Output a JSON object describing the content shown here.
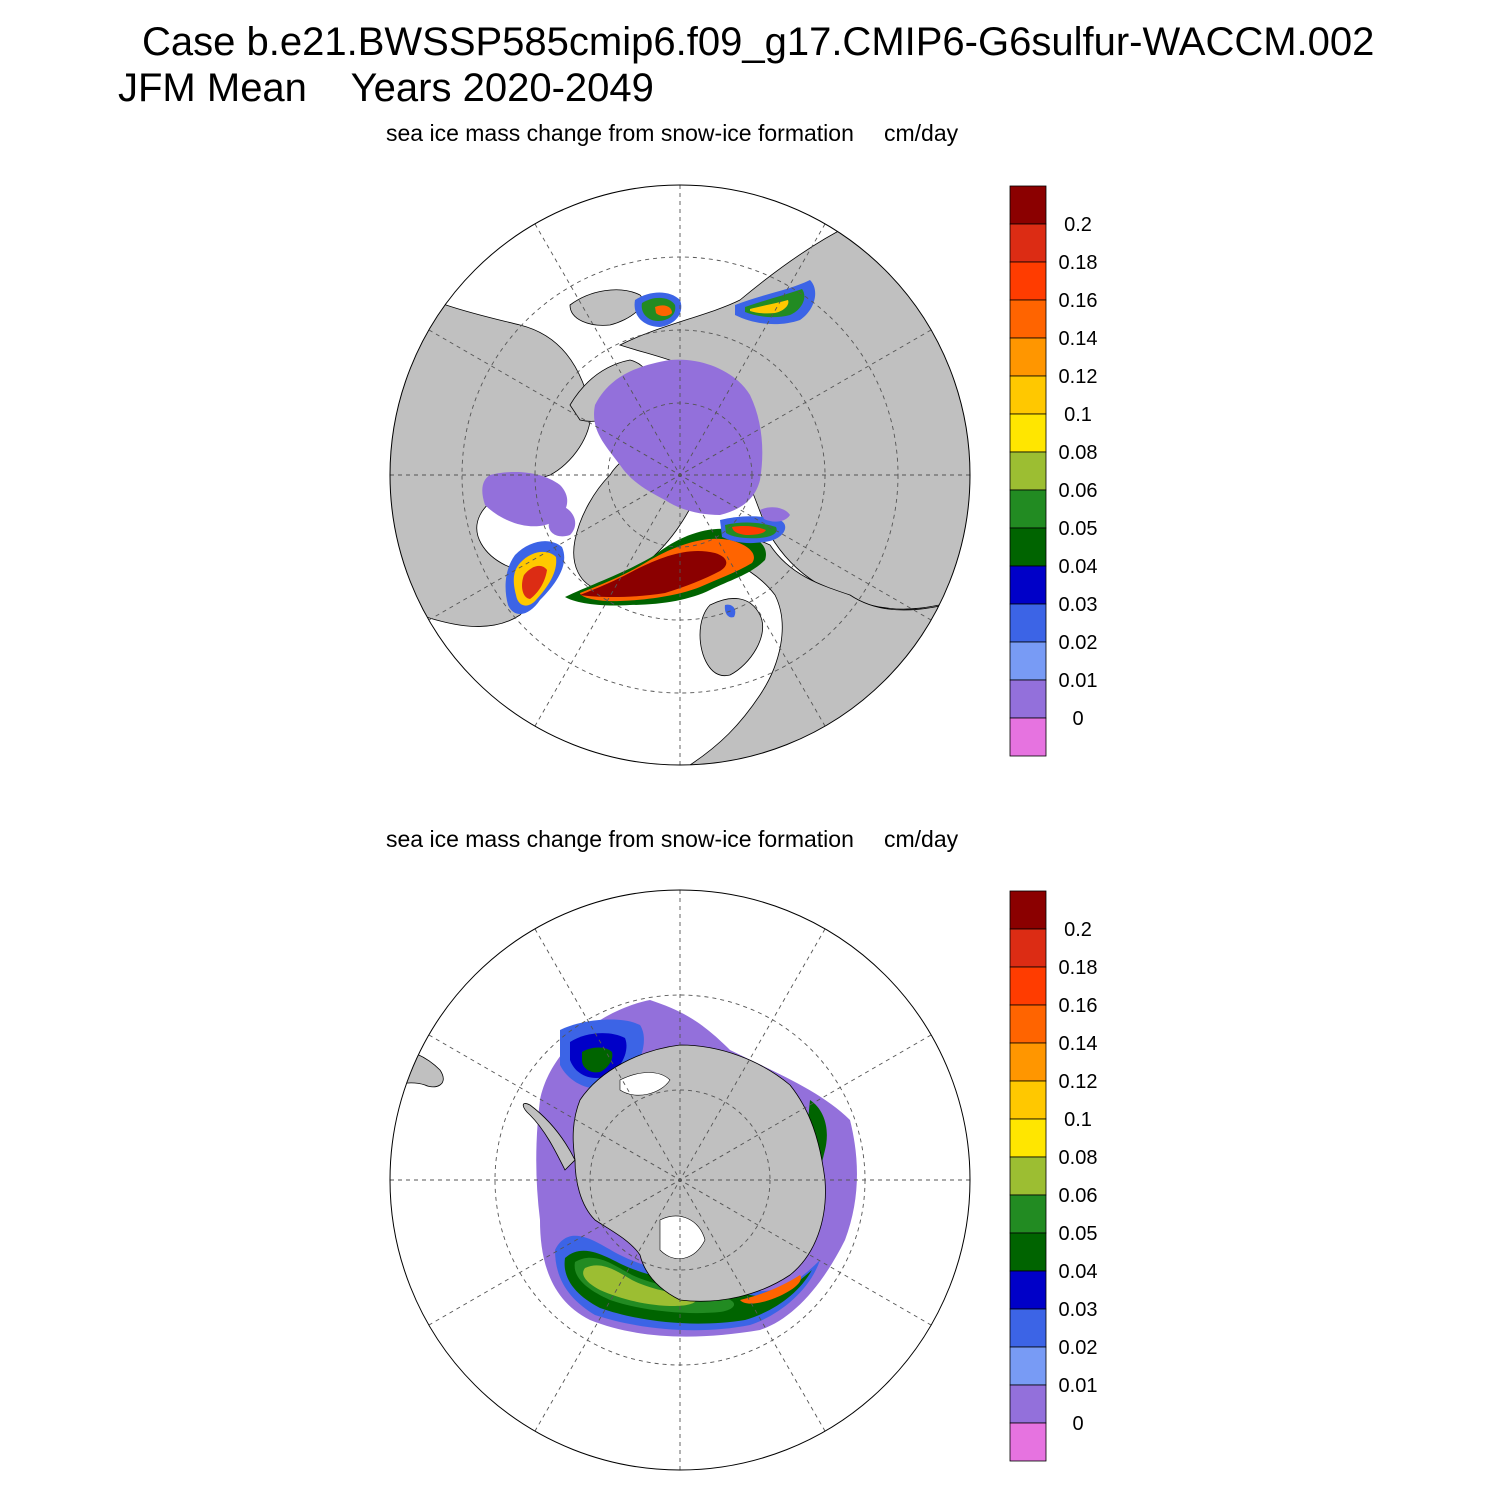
{
  "header": {
    "case_line": "Case b.e21.BWSSP585cmip6.f09_g17.CMIP6-G6sulfur-WACCM.002",
    "period_line": "JFM Mean    Years 2020-2049"
  },
  "panels": [
    {
      "id": "north",
      "title": "sea ice mass change from snow-ice formation",
      "units": "cm/day",
      "hemisphere": "northern",
      "projection": "polar stereographic"
    },
    {
      "id": "south",
      "title": "sea ice mass change from snow-ice formation",
      "units": "cm/day",
      "hemisphere": "southern",
      "projection": "polar stereographic"
    }
  ],
  "colorbar": {
    "labels": [
      "0.2",
      "0.18",
      "0.16",
      "0.14",
      "0.12",
      "0.1",
      "0.08",
      "0.06",
      "0.05",
      "0.04",
      "0.03",
      "0.02",
      "0.01",
      "0"
    ],
    "colors": [
      "#8b0000",
      "#dc2c14",
      "#ff3c00",
      "#ff6400",
      "#ff9600",
      "#ffc800",
      "#ffe600",
      "#9cbe32",
      "#228b22",
      "#006400",
      "#0000c8",
      "#3c64e6",
      "#789bf5",
      "#9370db",
      "#e673e0"
    ]
  },
  "map_colors": {
    "land": "#c0c0c0",
    "ocean": "#ffffff",
    "ice_zero": "#9370db"
  }
}
